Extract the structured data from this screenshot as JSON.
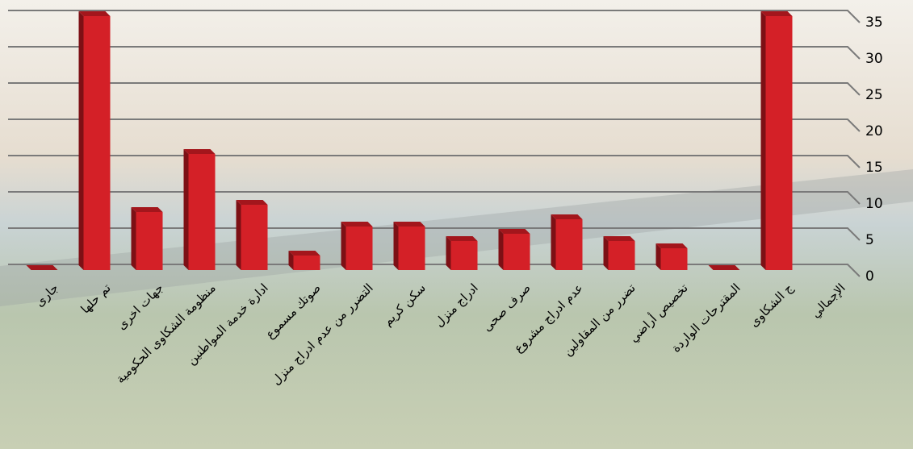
{
  "chart_data": {
    "type": "bar",
    "categories": [
      "جارى",
      "تم حلها",
      "جهات اخرى",
      "منظومة الشكاوى الحكومية",
      "ادارة خدمة المواطنين",
      "صوتك مسموع",
      "التضرر من عدم ادراج منزل",
      "سكن كريم",
      "ادراج منزل",
      "صرف صحى",
      "عدم ادراج مشروع",
      "تضرر من المقاولين",
      "تخصيص أراضي",
      "المقترحات الواردة",
      "ج الشكاوى",
      "الإجمالي"
    ],
    "values": [
      0,
      35,
      8,
      16,
      9,
      2,
      6,
      6,
      4,
      5,
      7,
      4,
      3,
      0,
      35,
      null
    ],
    "color": "#d42027",
    "ylim": [
      0,
      35
    ],
    "yticks": [
      0,
      5,
      10,
      15,
      20,
      25,
      30,
      35
    ],
    "grid": true
  }
}
